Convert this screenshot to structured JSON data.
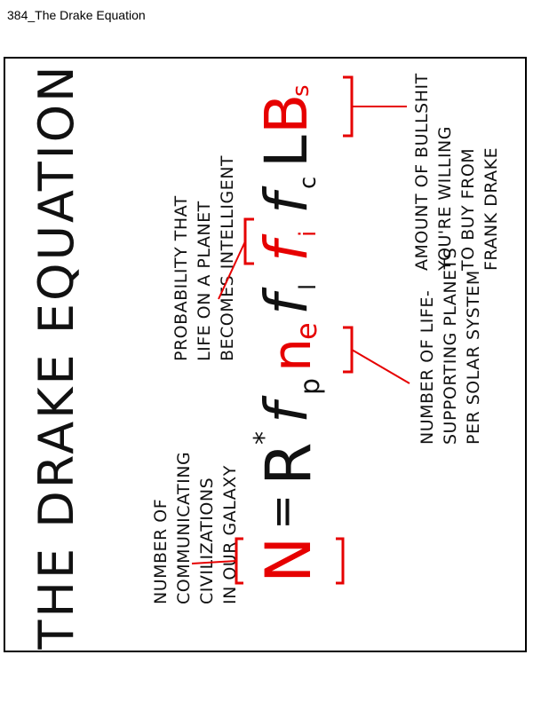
{
  "page": {
    "title": "384_The Drake Equation"
  },
  "comic": {
    "title": "THE DRAKE EQUATION",
    "equation": {
      "lhs": "N",
      "equals": "=",
      "terms": [
        {
          "symbol": "R",
          "sup": "*",
          "color": "black"
        },
        {
          "symbol": "f",
          "sub": "p",
          "color": "black"
        },
        {
          "symbol": "n",
          "sub": "e",
          "color": "red"
        },
        {
          "symbol": "f",
          "sub": "l",
          "color": "black"
        },
        {
          "symbol": "f",
          "sub": "i",
          "color": "red"
        },
        {
          "symbol": "f",
          "sub": "c",
          "color": "black"
        },
        {
          "symbol": "L",
          "color": "black"
        },
        {
          "symbol": "B",
          "sub": "s",
          "color": "red"
        }
      ]
    },
    "annotations": {
      "n_label": [
        "NUMBER OF",
        "COMMUNICATING",
        "CIVILIZATIONS",
        "IN OUR GALAXY"
      ],
      "ne_label": [
        "NUMBER OF LIFE-",
        "SUPPORTING PLANETS",
        "PER SOLAR SYSTEM"
      ],
      "fi_label": [
        "PROBABILITY THAT",
        "LIFE ON A PLANET",
        "BECOMES INTELLIGENT"
      ],
      "bs_label": [
        "AMOUNT OF BULLSHIT",
        "YOU'RE WILLING",
        "TO BUY FROM",
        "FRANK DRAKE"
      ]
    },
    "colors": {
      "ink": "#111111",
      "highlight": "#e60000"
    }
  }
}
